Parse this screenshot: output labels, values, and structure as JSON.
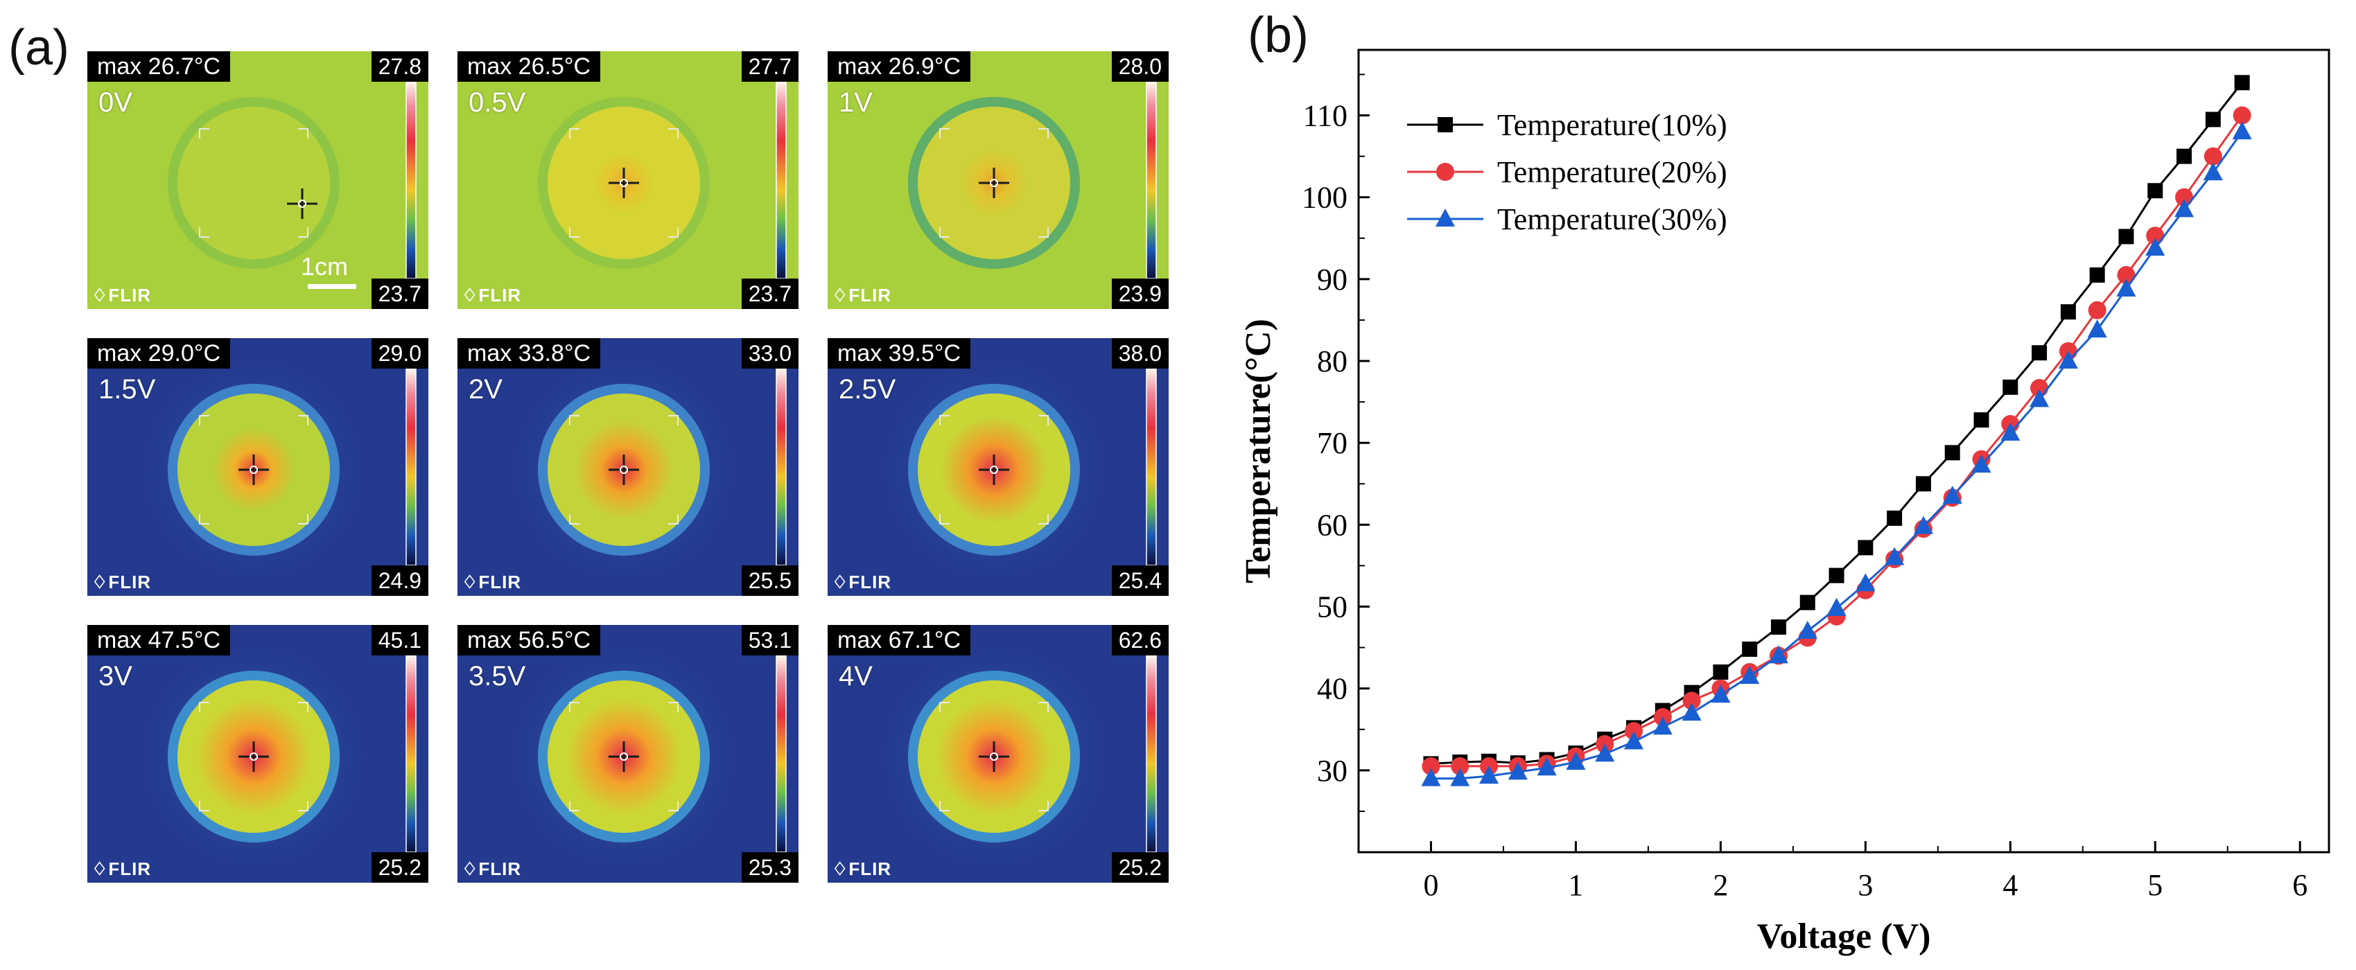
{
  "panels": {
    "a_label": "(a)",
    "b_label": "(b)"
  },
  "thermal_images": [
    {
      "max": "max 26.7°C",
      "top": "27.8",
      "bottom": "23.7",
      "voltage": "0V",
      "brand": "FLIR",
      "bg": "#a8cf3c",
      "rim": "#8fc544",
      "inner": "#b5d23c",
      "core": "#b5d23c",
      "hot": "#b5d23c",
      "core_strength": 0.0,
      "blue": false,
      "scalebar": "1cm"
    },
    {
      "max": "max 26.5°C",
      "top": "27.7",
      "bottom": "23.7",
      "voltage": "0.5V",
      "brand": "FLIR",
      "bg": "#a8cf3c",
      "rim": "#93c743",
      "inner": "#d6d535",
      "core": "#e6c22f",
      "hot": "#eaa62a",
      "core_strength": 0.3,
      "blue": false
    },
    {
      "max": "max 26.9°C",
      "top": "28.0",
      "bottom": "23.9",
      "voltage": "1V",
      "brand": "FLIR",
      "bg": "#a8cf3c",
      "rim": "#5fae6a",
      "inner": "#cdd23a",
      "core": "#e3c230",
      "hot": "#ea9e2b",
      "core_strength": 0.35,
      "blue": false
    },
    {
      "max": "max 29.0°C",
      "top": "29.0",
      "bottom": "24.9",
      "voltage": "1.5V",
      "brand": "FLIR",
      "bg": "#243a8f",
      "rim": "#3f83c8",
      "inner": "#b8d23a",
      "core": "#f0b02a",
      "hot": "#ea3b3b",
      "core_strength": 0.45,
      "blue": true
    },
    {
      "max": "max 33.8°C",
      "top": "33.0",
      "bottom": "25.5",
      "voltage": "2V",
      "brand": "FLIR",
      "bg": "#243a8f",
      "rim": "#3f83c8",
      "inner": "#c4d438",
      "core": "#f0a52a",
      "hot": "#e8333e",
      "core_strength": 0.55,
      "blue": true
    },
    {
      "max": "max 39.5°C",
      "top": "38.0",
      "bottom": "25.4",
      "voltage": "2.5V",
      "brand": "FLIR",
      "bg": "#243a8f",
      "rim": "#3f83c8",
      "inner": "#c8d636",
      "core": "#f19a2b",
      "hot": "#e6304a",
      "core_strength": 0.6,
      "blue": true
    },
    {
      "max": "max 47.5°C",
      "top": "45.1",
      "bottom": "25.2",
      "voltage": "3V",
      "brand": "FLIR",
      "bg": "#243a8f",
      "rim": "#3d8fcc",
      "inner": "#cbd735",
      "core": "#f3a22a",
      "hot": "#e52e4a",
      "core_strength": 0.65,
      "blue": true
    },
    {
      "max": "max 56.5°C",
      "top": "53.1",
      "bottom": "25.3",
      "voltage": "3.5V",
      "brand": "FLIR",
      "bg": "#243a8f",
      "rim": "#3d8fcc",
      "inner": "#cbd735",
      "core": "#f3a22a",
      "hot": "#e52e4a",
      "core_strength": 0.65,
      "blue": true
    },
    {
      "max": "max 67.1°C",
      "top": "62.6",
      "bottom": "25.2",
      "voltage": "4V",
      "brand": "FLIR",
      "bg": "#243a8f",
      "rim": "#3d8fcc",
      "inner": "#cbd735",
      "core": "#f3a22a",
      "hot": "#e52e4a",
      "core_strength": 0.65,
      "blue": true
    }
  ],
  "chart_data": {
    "type": "line",
    "xlabel": "Voltage (V)",
    "ylabel": "Temperature(°C)",
    "xlim": [
      -0.5,
      6.2
    ],
    "ylim": [
      20,
      118
    ],
    "xticks": [
      0,
      1,
      2,
      3,
      4,
      5,
      6
    ],
    "yticks": [
      30,
      40,
      50,
      60,
      70,
      80,
      90,
      100,
      110
    ],
    "legend_position": "top-left",
    "x": [
      0,
      0.2,
      0.4,
      0.6,
      0.8,
      1.0,
      1.2,
      1.4,
      1.6,
      1.8,
      2.0,
      2.2,
      2.4,
      2.6,
      2.8,
      3.0,
      3.2,
      3.4,
      3.6,
      3.8,
      4.0,
      4.2,
      4.4,
      4.6,
      4.8,
      5.0,
      5.2,
      5.4,
      5.6
    ],
    "series": [
      {
        "name": "Temperature(10%)",
        "color": "#000000",
        "marker": "square",
        "values": [
          30.8,
          31.0,
          31.1,
          30.9,
          31.3,
          32.1,
          33.8,
          35.2,
          37.3,
          39.5,
          42.0,
          44.8,
          47.5,
          50.5,
          53.8,
          57.2,
          60.8,
          65.0,
          68.8,
          72.8,
          76.8,
          81.0,
          86.0,
          90.5,
          95.2,
          100.8,
          105.0,
          109.5,
          114.0
        ]
      },
      {
        "name": "Temperature(20%)",
        "color": "#e8383d",
        "marker": "circle",
        "values": [
          30.5,
          30.5,
          30.5,
          30.5,
          30.8,
          31.7,
          33.2,
          34.8,
          36.5,
          38.5,
          40.0,
          42.0,
          44.0,
          46.2,
          48.8,
          52.0,
          55.8,
          59.5,
          63.3,
          68.0,
          72.3,
          76.7,
          81.2,
          86.2,
          90.5,
          95.3,
          100.0,
          105.0,
          110.0
        ]
      },
      {
        "name": "Temperature(30%)",
        "color": "#1a5fd1",
        "marker": "triangle",
        "values": [
          29.0,
          29.0,
          29.3,
          29.8,
          30.3,
          31.0,
          32.0,
          33.5,
          35.3,
          37.0,
          39.2,
          41.5,
          44.0,
          47.0,
          49.8,
          52.8,
          56.0,
          59.8,
          63.5,
          67.3,
          71.2,
          75.3,
          80.0,
          83.8,
          88.8,
          93.8,
          98.5,
          103.0,
          108.0
        ]
      }
    ]
  }
}
